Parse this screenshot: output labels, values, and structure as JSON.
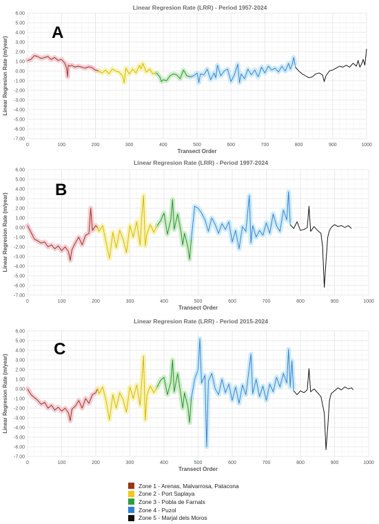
{
  "chart_data": [
    {
      "type": "line",
      "panel_label": "A",
      "title": "Linear Regresion Rate (LRR) - Period 1957-2024",
      "xlabel": "Transect Order",
      "ylabel": "Linear Regresion Rate (m/year)",
      "xlim": [
        0,
        1000
      ],
      "ylim": [
        -7,
        6
      ],
      "x_ticks": [
        "0",
        "100",
        "200",
        "300",
        "400",
        "500",
        "600",
        "700",
        "800",
        "900",
        "1000"
      ],
      "y_ticks": [
        "6.00",
        "5.00",
        "4.00",
        "3.00",
        "2.00",
        "1.00",
        "0.00",
        "-1.00",
        "-2.00",
        "-3.00",
        "-4.00",
        "-5.00",
        "-6.00",
        "-7.00"
      ],
      "grid": true,
      "series": [
        {
          "zone": 1,
          "x": [
            0,
            10,
            20,
            30,
            40,
            50,
            60,
            70,
            80,
            90,
            100,
            110,
            115,
            118,
            120,
            125,
            130,
            140,
            150,
            160,
            170,
            180,
            190,
            200,
            210
          ],
          "y": [
            1.1,
            1.2,
            1.6,
            1.5,
            1.3,
            1.4,
            1.5,
            1.2,
            1.4,
            1.1,
            1.2,
            0.8,
            0.3,
            -0.6,
            0.6,
            0.5,
            0.6,
            0.4,
            0.5,
            0.4,
            0.3,
            0.45,
            0.35,
            0.1,
            0.0
          ]
        },
        {
          "zone": 2,
          "x": [
            210,
            220,
            230,
            240,
            250,
            260,
            270,
            280,
            285,
            290,
            300,
            310,
            320,
            330,
            335,
            340,
            350,
            360,
            370,
            380
          ],
          "y": [
            0.0,
            -0.2,
            0.1,
            -0.3,
            0.2,
            0.0,
            -0.1,
            -0.5,
            -1.2,
            0.3,
            -0.3,
            0.2,
            -0.2,
            0.6,
            0.2,
            0.8,
            -0.1,
            0.2,
            -0.3,
            -0.2
          ]
        },
        {
          "zone": 3,
          "x": [
            380,
            390,
            395,
            400,
            410,
            420,
            430,
            440,
            450,
            460,
            470,
            480
          ],
          "y": [
            -0.2,
            -0.6,
            -1.1,
            -0.9,
            -1.0,
            -0.5,
            -0.3,
            -0.4,
            -0.8,
            0.1,
            -0.5,
            -0.6
          ]
        },
        {
          "zone": 4,
          "x": [
            480,
            490,
            500,
            505,
            510,
            520,
            530,
            540,
            550,
            555,
            560,
            570,
            580,
            590,
            600,
            610,
            620,
            625,
            630,
            640,
            650,
            660,
            670,
            680,
            690,
            700,
            710,
            720,
            730,
            740,
            750,
            760,
            770,
            775,
            780,
            785,
            790
          ],
          "y": [
            -0.6,
            -0.5,
            -0.2,
            -1.2,
            -0.3,
            -0.4,
            0.2,
            -0.9,
            -0.2,
            -0.7,
            0.6,
            -0.5,
            0.0,
            0.2,
            -1.1,
            -0.4,
            0.7,
            -1.2,
            -0.3,
            -0.8,
            0.2,
            -0.4,
            0.1,
            -0.6,
            0.4,
            -0.2,
            0.5,
            0.1,
            0.3,
            -0.1,
            0.5,
            0.0,
            0.8,
            0.2,
            0.6,
            1.4,
            0.4
          ]
        },
        {
          "zone": 5,
          "x": [
            790,
            800,
            810,
            820,
            830,
            840,
            850,
            860,
            870,
            875,
            880,
            890,
            900,
            910,
            920,
            930,
            940,
            950,
            960,
            970,
            975,
            980,
            985,
            990,
            995,
            1000
          ],
          "y": [
            0.4,
            0.0,
            -0.3,
            -0.5,
            -0.7,
            -0.6,
            -0.3,
            -0.2,
            -0.4,
            -1.1,
            -0.5,
            0.0,
            0.1,
            0.3,
            0.5,
            0.4,
            0.6,
            0.4,
            0.8,
            0.5,
            1.1,
            0.4,
            0.7,
            1.2,
            0.6,
            2.3
          ]
        }
      ]
    },
    {
      "type": "line",
      "panel_label": "B",
      "title": "Linear Regresion Rate (LRR) - Period 1997-2024",
      "xlabel": "Transect Order",
      "ylabel": "Linear Regresion Rate (m/year)",
      "xlim": [
        0,
        1000
      ],
      "ylim": [
        -7,
        6
      ],
      "x_ticks": [
        "0",
        "100",
        "200",
        "300",
        "400",
        "500",
        "600",
        "700",
        "800",
        "900",
        "1000"
      ],
      "y_ticks": [
        "6.00",
        "5.00",
        "4.00",
        "3.00",
        "2.00",
        "1.00",
        "0.00",
        "-1.00",
        "-2.00",
        "-3.00",
        "-4.00",
        "-5.00",
        "-6.00",
        "-7.00"
      ],
      "grid": true,
      "series": [
        {
          "zone": 1,
          "x": [
            0,
            10,
            20,
            30,
            40,
            50,
            60,
            70,
            80,
            90,
            100,
            110,
            120,
            125,
            130,
            140,
            150,
            160,
            170,
            180,
            185,
            190,
            200,
            205
          ],
          "y": [
            0.2,
            -0.5,
            -1.2,
            -1.4,
            -1.6,
            -1.5,
            -2.0,
            -1.8,
            -2.2,
            -1.9,
            -2.4,
            -2.0,
            -2.5,
            -3.4,
            -2.3,
            -1.6,
            -1.0,
            -1.8,
            -0.8,
            -0.6,
            2.0,
            -0.3,
            0.2,
            0.0
          ]
        },
        {
          "zone": 2,
          "x": [
            205,
            210,
            220,
            230,
            240,
            250,
            260,
            270,
            280,
            290,
            300,
            310,
            320,
            330,
            335,
            340,
            345,
            350,
            360,
            370,
            380
          ],
          "y": [
            0.0,
            -0.4,
            0.2,
            -1.5,
            -3.2,
            -0.5,
            -2.1,
            -0.3,
            -1.2,
            -2.6,
            0.2,
            -1.0,
            0.6,
            -1.8,
            1.2,
            3.3,
            -1.9,
            -0.6,
            0.3,
            -0.5,
            0.2
          ]
        },
        {
          "zone": 3,
          "x": [
            380,
            390,
            400,
            410,
            420,
            425,
            430,
            440,
            450,
            455,
            460,
            470,
            475,
            480
          ],
          "y": [
            0.2,
            0.7,
            1.5,
            -0.7,
            0.8,
            2.9,
            -0.2,
            1.4,
            -0.5,
            -1.8,
            -0.6,
            -2.0,
            -3.3,
            -1.2
          ]
        },
        {
          "zone": 4,
          "x": [
            480,
            490,
            500,
            510,
            520,
            530,
            540,
            550,
            560,
            570,
            580,
            590,
            600,
            610,
            620,
            630,
            640,
            650,
            655,
            660,
            670,
            680,
            690,
            700,
            710,
            720,
            730,
            740,
            750,
            760,
            765,
            770
          ],
          "y": [
            -1.2,
            2.2,
            2.0,
            1.5,
            0.8,
            -0.4,
            1.0,
            0.3,
            -0.6,
            0.4,
            -0.2,
            0.6,
            -1.5,
            -0.3,
            -2.2,
            0.1,
            -0.4,
            3.3,
            -1.6,
            0.2,
            -1.0,
            -0.3,
            -0.8,
            0.5,
            -0.6,
            1.4,
            0.2,
            -0.4,
            1.8,
            0.8,
            3.7,
            0.3
          ]
        },
        {
          "zone": 5,
          "x": [
            770,
            780,
            790,
            800,
            810,
            820,
            825,
            830,
            840,
            850,
            860,
            865,
            870,
            875,
            880,
            885,
            890,
            900,
            910,
            920,
            930,
            940,
            950
          ],
          "y": [
            0.3,
            -0.1,
            0.6,
            -0.3,
            -0.2,
            0.0,
            2.2,
            -0.4,
            0.1,
            -0.3,
            -0.6,
            -2.0,
            -6.2,
            -3.5,
            -1.0,
            -0.3,
            0.0,
            0.3,
            0.1,
            0.2,
            0.0,
            0.2,
            -0.1
          ]
        }
      ]
    },
    {
      "type": "line",
      "panel_label": "C",
      "title": "Linear Regresion Rate (LRR) - Period 2015-2024",
      "xlabel": "Transect Order",
      "ylabel": "Linear Regresion Rate (m/year)",
      "xlim": [
        0,
        1000
      ],
      "ylim": [
        -7,
        6
      ],
      "x_ticks": [
        "0",
        "100",
        "200",
        "300",
        "400",
        "500",
        "600",
        "700",
        "800",
        "900",
        "1000"
      ],
      "y_ticks": [
        "6.00",
        "5.00",
        "4.00",
        "3.00",
        "2.00",
        "1.00",
        "0.00",
        "-1.00",
        "-2.00",
        "-3.00",
        "-4.00",
        "-5.00",
        "-6.00",
        "-7.00"
      ],
      "grid": true,
      "series": [
        {
          "zone": 1,
          "x": [
            0,
            10,
            20,
            30,
            40,
            50,
            60,
            70,
            80,
            90,
            100,
            110,
            120,
            125,
            130,
            140,
            150,
            160,
            170,
            180,
            190,
            200,
            205
          ],
          "y": [
            0.0,
            -0.6,
            -0.9,
            -1.2,
            -1.6,
            -1.4,
            -2.0,
            -1.7,
            -2.2,
            -1.9,
            -2.3,
            -2.0,
            -2.5,
            -3.3,
            -2.1,
            -1.8,
            -1.2,
            -2.0,
            -1.0,
            -1.5,
            -0.6,
            -0.4,
            0.0
          ]
        },
        {
          "zone": 2,
          "x": [
            205,
            210,
            220,
            230,
            240,
            250,
            260,
            270,
            280,
            290,
            300,
            310,
            320,
            330,
            335,
            340,
            345,
            350,
            360,
            370,
            380
          ],
          "y": [
            0.0,
            -0.5,
            0.2,
            -1.2,
            -3.2,
            -0.6,
            -2.0,
            -0.4,
            -1.1,
            -2.4,
            0.2,
            -1.0,
            0.4,
            -1.7,
            0.9,
            3.4,
            -3.2,
            -0.6,
            0.3,
            -0.4,
            0.2
          ]
        },
        {
          "zone": 3,
          "x": [
            380,
            390,
            400,
            410,
            420,
            425,
            430,
            440,
            450,
            455,
            460,
            470,
            475,
            480
          ],
          "y": [
            0.2,
            0.9,
            1.2,
            -0.6,
            0.7,
            3.0,
            -0.3,
            1.6,
            -0.8,
            -2.0,
            -0.4,
            -1.8,
            -3.5,
            -1.0
          ]
        },
        {
          "zone": 4,
          "x": [
            480,
            490,
            500,
            505,
            510,
            520,
            525,
            530,
            540,
            550,
            560,
            570,
            580,
            590,
            600,
            610,
            620,
            630,
            640,
            650,
            655,
            660,
            670,
            680,
            690,
            700,
            710,
            720,
            730,
            740,
            750,
            760,
            765,
            770,
            775,
            780
          ],
          "y": [
            -1.0,
            1.0,
            2.0,
            5.2,
            0.6,
            1.4,
            -6.0,
            0.8,
            1.6,
            0.0,
            -0.6,
            1.0,
            -0.4,
            0.5,
            -1.2,
            0.2,
            -1.5,
            0.4,
            -0.6,
            2.2,
            3.6,
            -0.5,
            1.0,
            -0.8,
            0.3,
            -1.2,
            0.5,
            -0.3,
            1.2,
            0.2,
            1.6,
            0.6,
            4.1,
            0.2,
            2.9,
            -0.2
          ]
        },
        {
          "zone": 5,
          "x": [
            780,
            790,
            800,
            810,
            820,
            825,
            830,
            840,
            850,
            860,
            870,
            875,
            880,
            885,
            890,
            900,
            910,
            920,
            930,
            940,
            950,
            955
          ],
          "y": [
            -0.2,
            -0.6,
            -0.2,
            -0.4,
            -0.1,
            2.1,
            -0.3,
            0.0,
            -0.4,
            -0.8,
            -2.5,
            -6.3,
            -4.0,
            -1.2,
            -0.5,
            -0.2,
            0.1,
            -0.1,
            0.2,
            0.0,
            0.1,
            -0.1
          ]
        }
      ]
    }
  ],
  "legend": {
    "items": [
      {
        "zone": 1,
        "label": "Zone 1 - Arenas, Malvarrosa, Patacona",
        "color": "#9a3412"
      },
      {
        "zone": 2,
        "label": "Zone 2 - Port Saplaya",
        "color": "#f5c518"
      },
      {
        "zone": 3,
        "label": "Zone 3 - Pobla de Farnals",
        "color": "#2e9e3e"
      },
      {
        "zone": 4,
        "label": "Zone 4 - Puzol",
        "color": "#2f7fd1"
      },
      {
        "zone": 5,
        "label": "Zone 5 - Marjal dels Moros",
        "color": "#111111"
      }
    ]
  },
  "colors": {
    "zone_lines": [
      "#8b3a1a",
      "#d4b800",
      "#2e8b3a",
      "#3a7fd0",
      "#111111"
    ],
    "zone_glow": [
      "#f6b8c6",
      "#f7ef9a",
      "#b8e8b0",
      "#b8e4f8",
      "#ffffff"
    ],
    "grid": "#e4e4e4",
    "axis_text": "#555555",
    "title_text": "#6b6b6b"
  }
}
